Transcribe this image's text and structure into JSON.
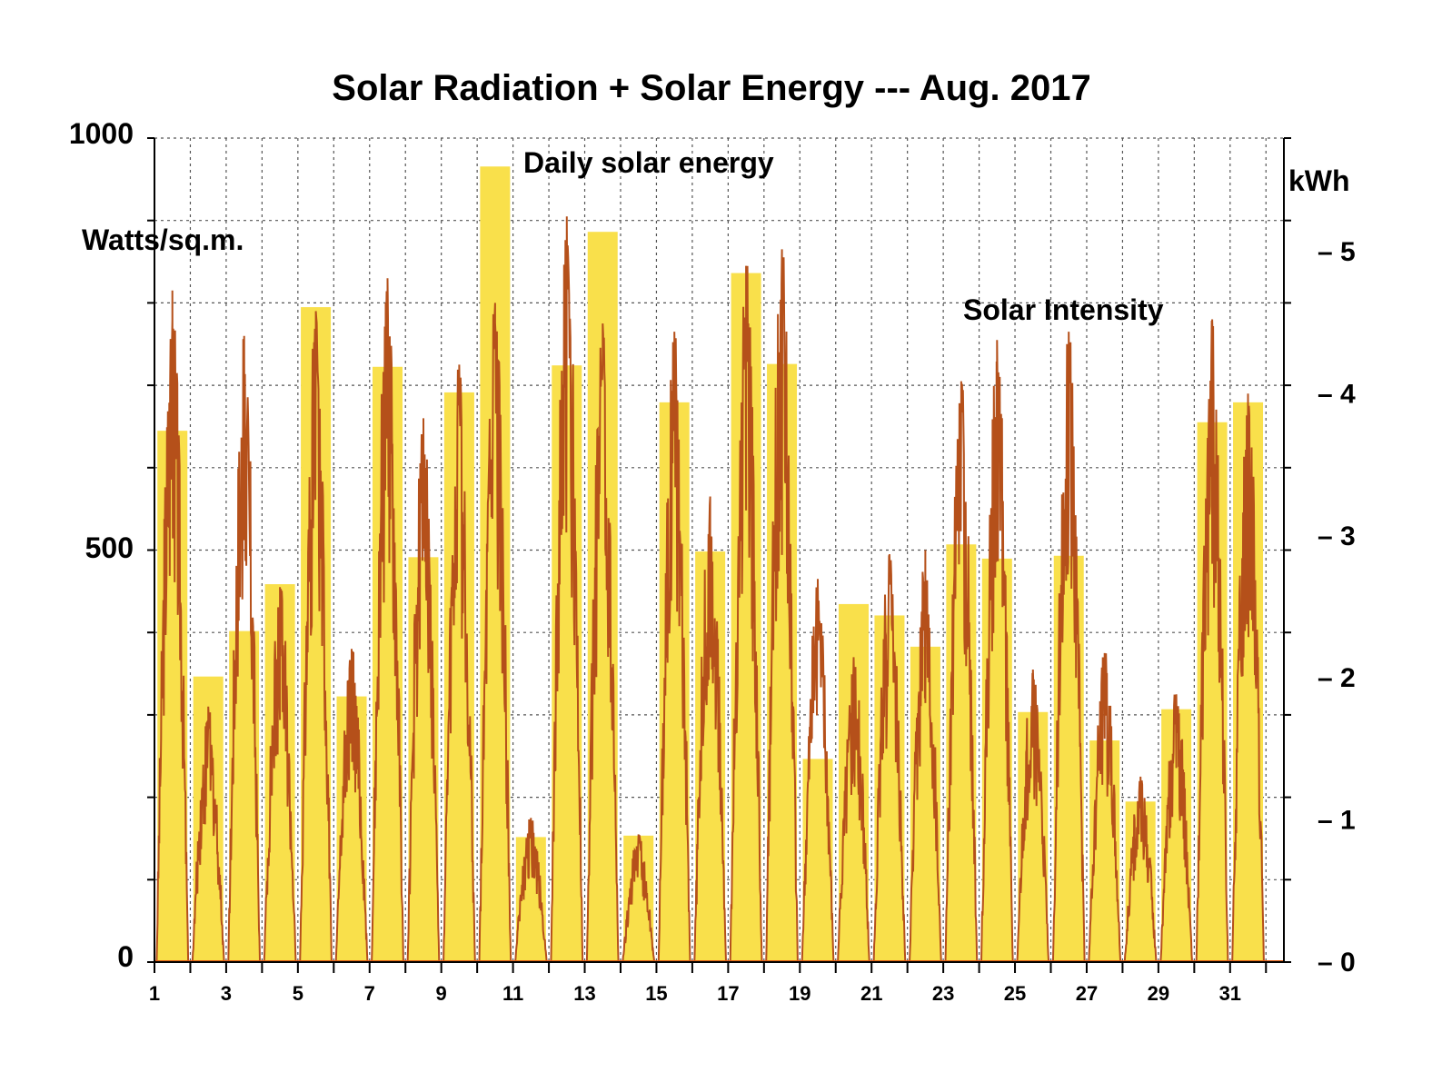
{
  "chart_data": {
    "type": "bar",
    "title": "Solar Radiation + Solar Energy --- Aug. 2017",
    "left_axis": {
      "label": "Watts/sq.m.",
      "ticks": [
        "0",
        "500",
        "1000"
      ],
      "ylim": [
        0,
        1000
      ]
    },
    "right_axis": {
      "label": "kWh",
      "ticks": [
        "0",
        "1",
        "2",
        "3",
        "4",
        "5"
      ],
      "ylim": [
        0,
        5.8
      ]
    },
    "x_tick_labels": [
      "1",
      "3",
      "5",
      "7",
      "9",
      "11",
      "13",
      "15",
      "17",
      "19",
      "21",
      "23",
      "25",
      "27",
      "29",
      "31"
    ],
    "annotations": [
      "Daily solar energy",
      "Solar Intensity"
    ],
    "grid": true,
    "days": [
      1,
      2,
      3,
      4,
      5,
      6,
      7,
      8,
      9,
      10,
      11,
      12,
      13,
      14,
      15,
      16,
      17,
      18,
      19,
      20,
      21,
      22,
      23,
      24,
      25,
      26,
      27,
      28,
      29,
      30,
      31
    ],
    "series": [
      {
        "name": "Daily solar energy",
        "axis": "right",
        "unit": "kWh",
        "color": "#F9E04B",
        "values": [
          3.74,
          2.01,
          2.33,
          2.66,
          4.61,
          1.87,
          4.19,
          2.85,
          4.01,
          5.6,
          0.88,
          4.2,
          5.14,
          0.89,
          3.94,
          2.89,
          4.85,
          4.21,
          1.43,
          2.52,
          2.44,
          2.22,
          2.94,
          2.84,
          1.76,
          2.86,
          1.56,
          1.13,
          1.78,
          3.8,
          3.94
        ]
      },
      {
        "name": "Solar Intensity",
        "axis": "left",
        "unit": "Watts/sq.m.",
        "color": "#B5501A",
        "daily_peak": [
          815,
          310,
          760,
          455,
          790,
          380,
          830,
          660,
          725,
          800,
          175,
          905,
          775,
          155,
          765,
          565,
          845,
          865,
          465,
          370,
          495,
          500,
          705,
          755,
          355,
          765,
          375,
          225,
          325,
          780,
          690
        ]
      }
    ]
  }
}
